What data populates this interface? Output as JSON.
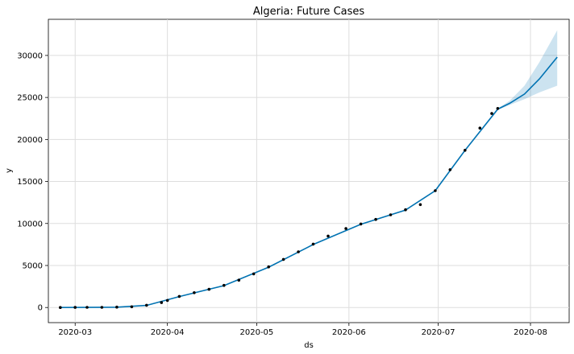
{
  "chart_data": {
    "type": "line",
    "title": "Algeria: Future Cases",
    "xlabel": "ds",
    "ylabel": "y",
    "x_ticks": [
      "2020-03",
      "2020-04",
      "2020-05",
      "2020-06",
      "2020-07",
      "2020-08"
    ],
    "y_ticks": [
      "0",
      "5000",
      "10000",
      "15000",
      "20000",
      "25000",
      "30000"
    ],
    "xlim": [
      "2020-02-21",
      "2020-08-14"
    ],
    "ylim": [
      -1800,
      34300
    ],
    "grid": true,
    "colors": {
      "forecast_line": "#0072B2",
      "uncertainty_band": "#0072B2",
      "observed_points": "#000000",
      "grid": "#dddddd"
    },
    "series": [
      {
        "role": "observed",
        "x": [
          "2020-02-25",
          "2020-03-01",
          "2020-03-05",
          "2020-03-10",
          "2020-03-15",
          "2020-03-20",
          "2020-03-25",
          "2020-03-30",
          "2020-04-01",
          "2020-04-05",
          "2020-04-10",
          "2020-04-15",
          "2020-04-20",
          "2020-04-25",
          "2020-04-30",
          "2020-05-05",
          "2020-05-10",
          "2020-05-15",
          "2020-05-20",
          "2020-05-25",
          "2020-05-31",
          "2020-06-05",
          "2020-06-10",
          "2020-06-15",
          "2020-06-20",
          "2020-06-25",
          "2020-06-30",
          "2020-07-05",
          "2020-07-10",
          "2020-07-15",
          "2020-07-19",
          "2020-07-21"
        ],
        "y": [
          1,
          8,
          17,
          20,
          48,
          90,
          264,
          584,
          847,
          1320,
          1761,
          2160,
          2629,
          3256,
          4006,
          4838,
          5723,
          6629,
          7542,
          8503,
          9394,
          9935,
          10484,
          11031,
          11631,
          12248,
          13907,
          16404,
          18712,
          21355,
          23084,
          23691
        ]
      },
      {
        "role": "forecast",
        "x": [
          "2020-02-25",
          "2020-03-15",
          "2020-03-25",
          "2020-04-05",
          "2020-04-20",
          "2020-05-05",
          "2020-05-20",
          "2020-06-05",
          "2020-06-20",
          "2020-06-30",
          "2020-07-10",
          "2020-07-21",
          "2020-07-25",
          "2020-07-30",
          "2020-08-04",
          "2020-08-10"
        ],
        "y": [
          0,
          40,
          250,
          1300,
          2600,
          4800,
          7500,
          9900,
          11600,
          13900,
          18700,
          23600,
          24300,
          25400,
          27200,
          29800
        ]
      },
      {
        "role": "forecast_upper",
        "x": [
          "2020-07-21",
          "2020-07-25",
          "2020-07-30",
          "2020-08-04",
          "2020-08-10"
        ],
        "y": [
          23700,
          24600,
          26400,
          29200,
          33000
        ]
      },
      {
        "role": "forecast_lower",
        "x": [
          "2020-07-21",
          "2020-07-25",
          "2020-07-30",
          "2020-08-04",
          "2020-08-10"
        ],
        "y": [
          23500,
          24100,
          24800,
          25600,
          26400
        ]
      }
    ]
  }
}
